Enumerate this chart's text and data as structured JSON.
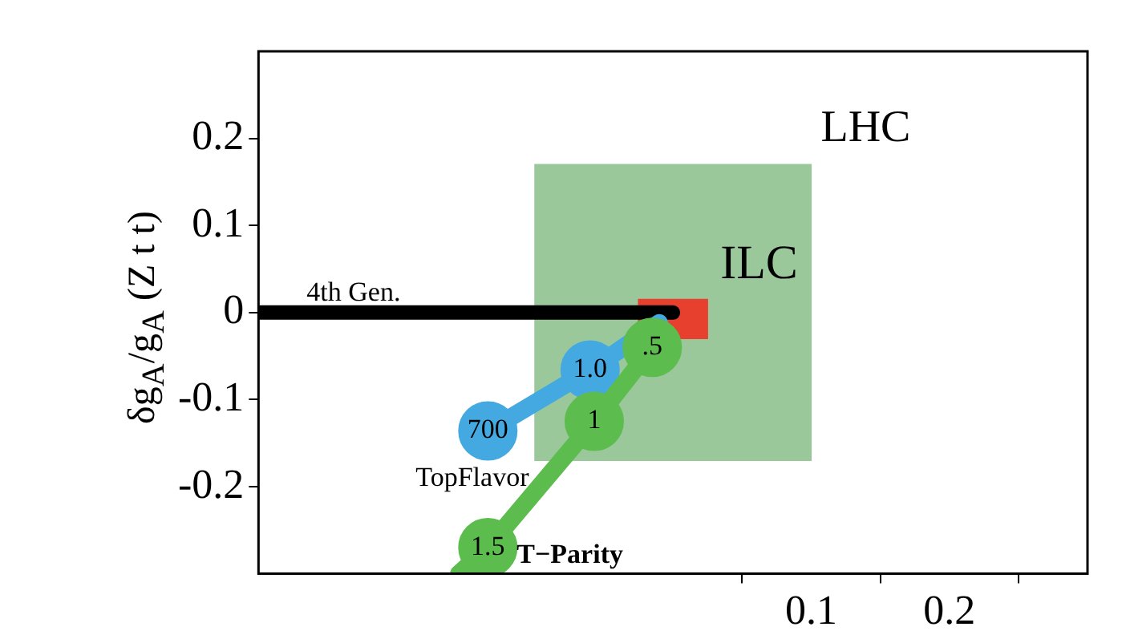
{
  "chart_data": {
    "type": "line",
    "ylabel": "δg$_{A}$/g$_{A}$ (Z t t)",
    "xlim": [
      -0.3,
      0.3
    ],
    "xticks": [
      0.1,
      0.2
    ],
    "ylim": [
      -0.3,
      0.3
    ],
    "yticks": [
      -0.2,
      -0.1,
      0,
      0.1,
      0.2
    ],
    "grid": false,
    "legend": false,
    "annotations": [
      {
        "text": "700",
        "x": -0.134,
        "y": -0.136
      },
      {
        "text": "1.0",
        "x": -0.06,
        "y": -0.066
      },
      {
        "text": ".5",
        "x": -0.015,
        "y": -0.04
      },
      {
        "text": "1",
        "x": -0.057,
        "y": -0.125
      },
      {
        "text": "1.5",
        "x": -0.134,
        "y": -0.27
      }
    ],
    "series": [
      {
        "name": "LHC",
        "type": "bar",
        "color": "#9bc89a",
        "x": [
          0
        ],
        "base": [
          -0.17
        ],
        "values": [
          0.34
        ]
      },
      {
        "name": "ILC",
        "type": "bar",
        "color": "#e8402f",
        "x": [
          0
        ],
        "base": [
          -0.03
        ],
        "values": [
          0.045
        ]
      },
      {
        "name": "4th Gen.",
        "color": "#000000",
        "marker": "none",
        "x": [
          -0.3,
          0
        ],
        "values": [
          0,
          0
        ]
      },
      {
        "name": "TopFlavor",
        "color": "#45a9e1",
        "marker": "circle",
        "x": [
          -0.134,
          -0.06,
          -0.01
        ],
        "values": [
          -0.136,
          -0.066,
          -0.012
        ]
      },
      {
        "name": "T−Parity",
        "color": "#5cbd4e",
        "marker": "circle",
        "x": [
          -0.015,
          -0.057,
          -0.134,
          -0.155
        ],
        "values": [
          -0.04,
          -0.125,
          -0.27,
          -0.3
        ]
      }
    ]
  }
}
